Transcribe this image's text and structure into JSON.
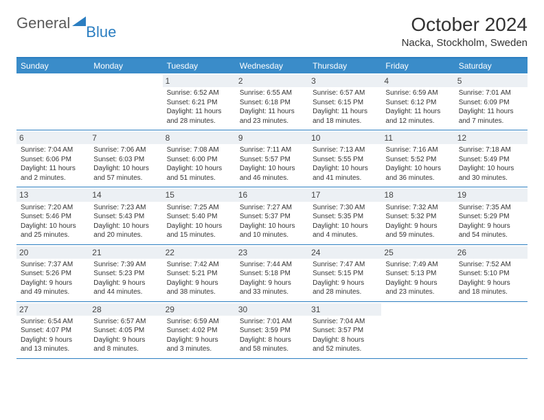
{
  "logo": {
    "text1": "General",
    "text2": "Blue"
  },
  "title": {
    "month": "October 2024",
    "location": "Nacka, Stockholm, Sweden"
  },
  "colors": {
    "header_bg": "#3a8cc9",
    "border": "#2b7ec1",
    "daynum_bg": "#ecf0f4",
    "text": "#333333"
  },
  "dayHeaders": [
    "Sunday",
    "Monday",
    "Tuesday",
    "Wednesday",
    "Thursday",
    "Friday",
    "Saturday"
  ],
  "weeks": [
    [
      {
        "n": "",
        "sunrise": "",
        "sunset": "",
        "daylight": ""
      },
      {
        "n": "",
        "sunrise": "",
        "sunset": "",
        "daylight": ""
      },
      {
        "n": "1",
        "sunrise": "Sunrise: 6:52 AM",
        "sunset": "Sunset: 6:21 PM",
        "daylight": "Daylight: 11 hours and 28 minutes."
      },
      {
        "n": "2",
        "sunrise": "Sunrise: 6:55 AM",
        "sunset": "Sunset: 6:18 PM",
        "daylight": "Daylight: 11 hours and 23 minutes."
      },
      {
        "n": "3",
        "sunrise": "Sunrise: 6:57 AM",
        "sunset": "Sunset: 6:15 PM",
        "daylight": "Daylight: 11 hours and 18 minutes."
      },
      {
        "n": "4",
        "sunrise": "Sunrise: 6:59 AM",
        "sunset": "Sunset: 6:12 PM",
        "daylight": "Daylight: 11 hours and 12 minutes."
      },
      {
        "n": "5",
        "sunrise": "Sunrise: 7:01 AM",
        "sunset": "Sunset: 6:09 PM",
        "daylight": "Daylight: 11 hours and 7 minutes."
      }
    ],
    [
      {
        "n": "6",
        "sunrise": "Sunrise: 7:04 AM",
        "sunset": "Sunset: 6:06 PM",
        "daylight": "Daylight: 11 hours and 2 minutes."
      },
      {
        "n": "7",
        "sunrise": "Sunrise: 7:06 AM",
        "sunset": "Sunset: 6:03 PM",
        "daylight": "Daylight: 10 hours and 57 minutes."
      },
      {
        "n": "8",
        "sunrise": "Sunrise: 7:08 AM",
        "sunset": "Sunset: 6:00 PM",
        "daylight": "Daylight: 10 hours and 51 minutes."
      },
      {
        "n": "9",
        "sunrise": "Sunrise: 7:11 AM",
        "sunset": "Sunset: 5:57 PM",
        "daylight": "Daylight: 10 hours and 46 minutes."
      },
      {
        "n": "10",
        "sunrise": "Sunrise: 7:13 AM",
        "sunset": "Sunset: 5:55 PM",
        "daylight": "Daylight: 10 hours and 41 minutes."
      },
      {
        "n": "11",
        "sunrise": "Sunrise: 7:16 AM",
        "sunset": "Sunset: 5:52 PM",
        "daylight": "Daylight: 10 hours and 36 minutes."
      },
      {
        "n": "12",
        "sunrise": "Sunrise: 7:18 AM",
        "sunset": "Sunset: 5:49 PM",
        "daylight": "Daylight: 10 hours and 30 minutes."
      }
    ],
    [
      {
        "n": "13",
        "sunrise": "Sunrise: 7:20 AM",
        "sunset": "Sunset: 5:46 PM",
        "daylight": "Daylight: 10 hours and 25 minutes."
      },
      {
        "n": "14",
        "sunrise": "Sunrise: 7:23 AM",
        "sunset": "Sunset: 5:43 PM",
        "daylight": "Daylight: 10 hours and 20 minutes."
      },
      {
        "n": "15",
        "sunrise": "Sunrise: 7:25 AM",
        "sunset": "Sunset: 5:40 PM",
        "daylight": "Daylight: 10 hours and 15 minutes."
      },
      {
        "n": "16",
        "sunrise": "Sunrise: 7:27 AM",
        "sunset": "Sunset: 5:37 PM",
        "daylight": "Daylight: 10 hours and 10 minutes."
      },
      {
        "n": "17",
        "sunrise": "Sunrise: 7:30 AM",
        "sunset": "Sunset: 5:35 PM",
        "daylight": "Daylight: 10 hours and 4 minutes."
      },
      {
        "n": "18",
        "sunrise": "Sunrise: 7:32 AM",
        "sunset": "Sunset: 5:32 PM",
        "daylight": "Daylight: 9 hours and 59 minutes."
      },
      {
        "n": "19",
        "sunrise": "Sunrise: 7:35 AM",
        "sunset": "Sunset: 5:29 PM",
        "daylight": "Daylight: 9 hours and 54 minutes."
      }
    ],
    [
      {
        "n": "20",
        "sunrise": "Sunrise: 7:37 AM",
        "sunset": "Sunset: 5:26 PM",
        "daylight": "Daylight: 9 hours and 49 minutes."
      },
      {
        "n": "21",
        "sunrise": "Sunrise: 7:39 AM",
        "sunset": "Sunset: 5:23 PM",
        "daylight": "Daylight: 9 hours and 44 minutes."
      },
      {
        "n": "22",
        "sunrise": "Sunrise: 7:42 AM",
        "sunset": "Sunset: 5:21 PM",
        "daylight": "Daylight: 9 hours and 38 minutes."
      },
      {
        "n": "23",
        "sunrise": "Sunrise: 7:44 AM",
        "sunset": "Sunset: 5:18 PM",
        "daylight": "Daylight: 9 hours and 33 minutes."
      },
      {
        "n": "24",
        "sunrise": "Sunrise: 7:47 AM",
        "sunset": "Sunset: 5:15 PM",
        "daylight": "Daylight: 9 hours and 28 minutes."
      },
      {
        "n": "25",
        "sunrise": "Sunrise: 7:49 AM",
        "sunset": "Sunset: 5:13 PM",
        "daylight": "Daylight: 9 hours and 23 minutes."
      },
      {
        "n": "26",
        "sunrise": "Sunrise: 7:52 AM",
        "sunset": "Sunset: 5:10 PM",
        "daylight": "Daylight: 9 hours and 18 minutes."
      }
    ],
    [
      {
        "n": "27",
        "sunrise": "Sunrise: 6:54 AM",
        "sunset": "Sunset: 4:07 PM",
        "daylight": "Daylight: 9 hours and 13 minutes."
      },
      {
        "n": "28",
        "sunrise": "Sunrise: 6:57 AM",
        "sunset": "Sunset: 4:05 PM",
        "daylight": "Daylight: 9 hours and 8 minutes."
      },
      {
        "n": "29",
        "sunrise": "Sunrise: 6:59 AM",
        "sunset": "Sunset: 4:02 PM",
        "daylight": "Daylight: 9 hours and 3 minutes."
      },
      {
        "n": "30",
        "sunrise": "Sunrise: 7:01 AM",
        "sunset": "Sunset: 3:59 PM",
        "daylight": "Daylight: 8 hours and 58 minutes."
      },
      {
        "n": "31",
        "sunrise": "Sunrise: 7:04 AM",
        "sunset": "Sunset: 3:57 PM",
        "daylight": "Daylight: 8 hours and 52 minutes."
      },
      {
        "n": "",
        "sunrise": "",
        "sunset": "",
        "daylight": ""
      },
      {
        "n": "",
        "sunrise": "",
        "sunset": "",
        "daylight": ""
      }
    ]
  ]
}
